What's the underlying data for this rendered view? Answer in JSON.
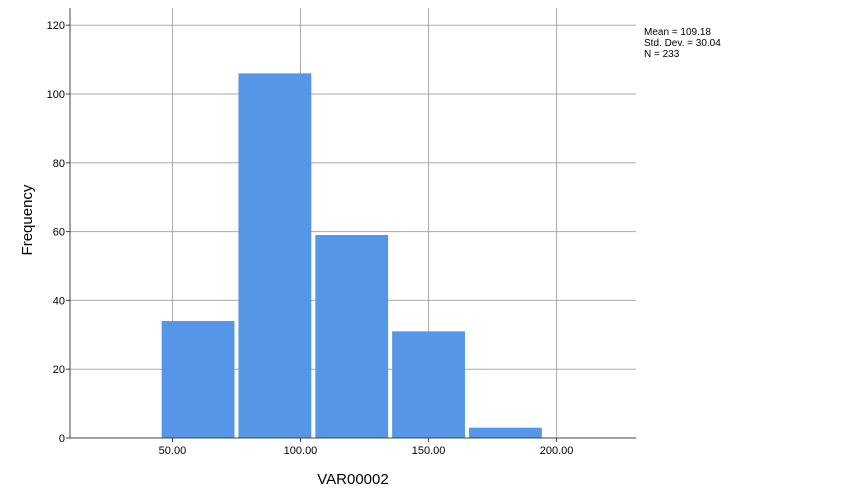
{
  "chart_data": {
    "type": "bar",
    "subtype": "histogram",
    "bins": [
      {
        "start": 45,
        "end": 75,
        "count": 34
      },
      {
        "start": 75,
        "end": 105,
        "count": 106
      },
      {
        "start": 105,
        "end": 135,
        "count": 59
      },
      {
        "start": 135,
        "end": 165,
        "count": 31
      },
      {
        "start": 165,
        "end": 195,
        "count": 3
      }
    ],
    "xlabel": "VAR00002",
    "ylabel": "Frequency",
    "xticks": [
      "50.00",
      "100.00",
      "150.00",
      "200.00"
    ],
    "xtick_values": [
      50,
      100,
      150,
      200
    ],
    "yticks": [
      "0",
      "20",
      "40",
      "60",
      "80",
      "100",
      "120"
    ],
    "ytick_values": [
      0,
      20,
      40,
      60,
      80,
      100,
      120
    ],
    "xlim": [
      10,
      231
    ],
    "ylim": [
      0,
      125
    ],
    "grid": true,
    "bar_color": "#5596E6",
    "stats": [
      "Mean = 109.18",
      "Std. Dev. = 30.04",
      "N = 233"
    ]
  }
}
